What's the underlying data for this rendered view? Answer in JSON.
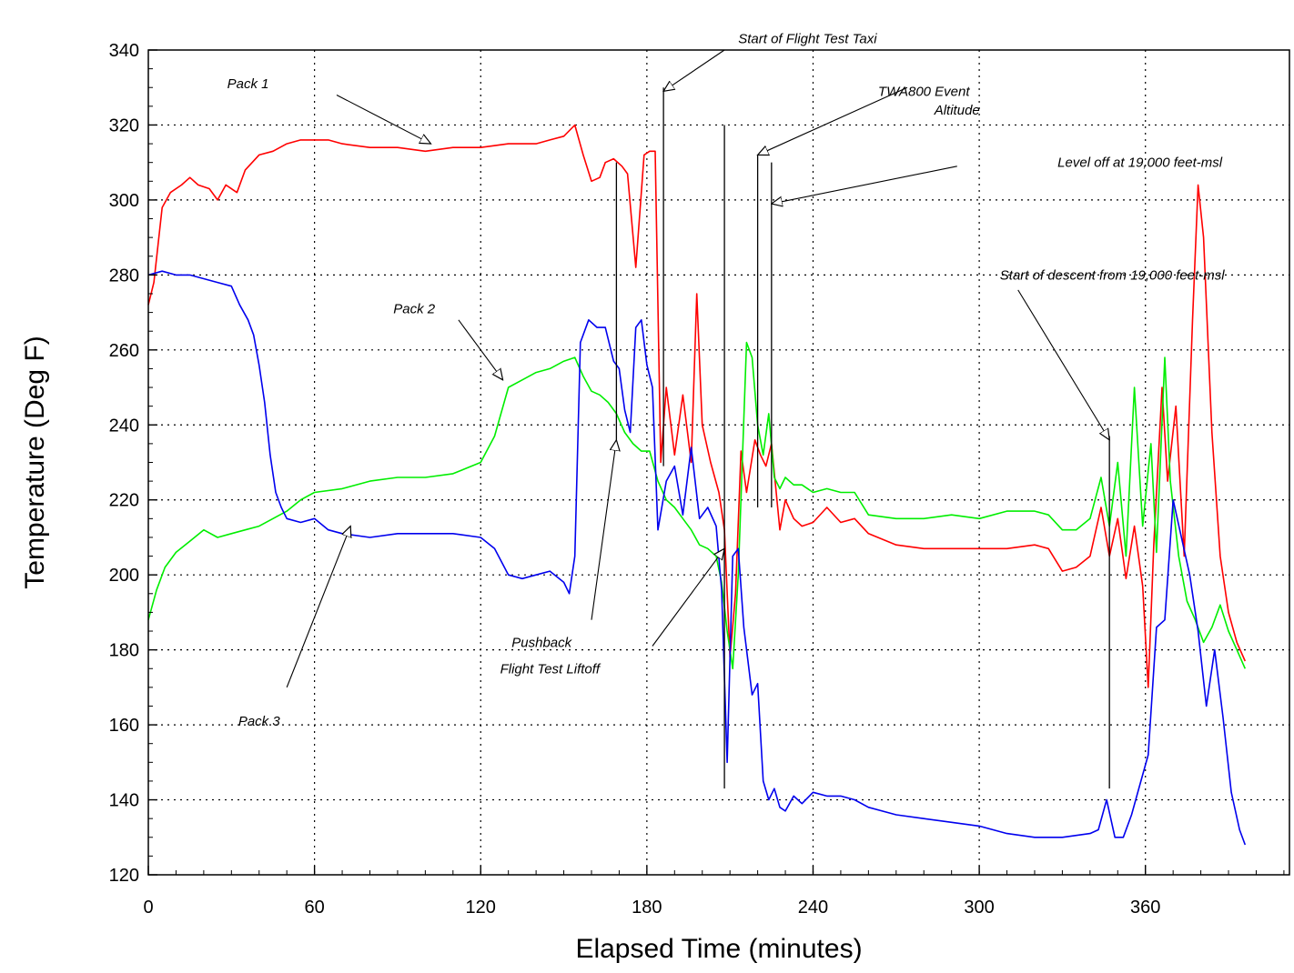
{
  "chart_data": {
    "type": "line",
    "title": "",
    "xlabel": "Elapsed Time (minutes)",
    "ylabel": "Temperature (Deg F)",
    "xlim": [
      0,
      412
    ],
    "ylim": [
      120,
      340
    ],
    "xticks": [
      0,
      60,
      120,
      180,
      240,
      300,
      360
    ],
    "yticks": [
      120,
      140,
      160,
      180,
      200,
      220,
      240,
      260,
      280,
      300,
      320,
      340
    ],
    "grid": true,
    "series": [
      {
        "color": "#ff0000",
        "x": [
          0,
          2,
          5,
          8,
          12,
          15,
          18,
          22,
          25,
          28,
          32,
          35,
          40,
          45,
          50,
          55,
          60,
          65,
          70,
          80,
          90,
          100,
          110,
          120,
          130,
          140,
          145,
          150,
          154,
          157,
          160,
          163,
          165,
          168,
          171,
          173,
          176,
          179,
          181,
          183,
          185,
          187,
          190,
          193,
          196,
          198,
          200,
          203,
          206,
          208,
          210,
          212,
          214,
          216,
          219,
          221,
          223,
          225,
          228,
          230,
          233,
          236,
          240,
          245,
          250,
          255,
          260,
          270,
          280,
          290,
          300,
          310,
          320,
          325,
          330,
          335,
          340,
          344,
          347,
          350,
          353,
          356,
          359,
          361,
          363,
          366,
          368,
          371,
          374,
          377,
          379,
          381,
          384,
          387,
          390,
          393,
          396
        ],
        "y": [
          272,
          278,
          298,
          302,
          304,
          306,
          304,
          303,
          300,
          304,
          302,
          308,
          312,
          313,
          315,
          316,
          316,
          316,
          315,
          314,
          314,
          313,
          314,
          314,
          315,
          315,
          316,
          317,
          320,
          312,
          305,
          306,
          310,
          311,
          309,
          307,
          282,
          312,
          313,
          313,
          230,
          250,
          232,
          248,
          230,
          275,
          240,
          230,
          222,
          212,
          178,
          195,
          233,
          222,
          236,
          232,
          229,
          235,
          212,
          220,
          215,
          213,
          214,
          218,
          214,
          215,
          211,
          208,
          207,
          207,
          207,
          207,
          208,
          207,
          201,
          202,
          205,
          218,
          205,
          215,
          199,
          213,
          197,
          170,
          208,
          250,
          225,
          245,
          205,
          268,
          304,
          290,
          238,
          205,
          190,
          182,
          177
        ]
      },
      {
        "color": "#00ee00",
        "x": [
          0,
          3,
          6,
          10,
          15,
          20,
          25,
          30,
          35,
          40,
          45,
          50,
          55,
          60,
          70,
          80,
          90,
          100,
          110,
          120,
          125,
          130,
          135,
          140,
          145,
          150,
          154,
          157,
          160,
          163,
          166,
          169,
          172,
          175,
          178,
          181,
          184,
          187,
          190,
          193,
          196,
          199,
          202,
          205,
          207,
          209,
          211,
          213,
          216,
          218,
          220,
          222,
          224,
          226,
          228,
          230,
          233,
          236,
          240,
          245,
          250,
          255,
          260,
          270,
          280,
          290,
          300,
          310,
          320,
          325,
          330,
          335,
          340,
          344,
          347,
          350,
          353,
          356,
          359,
          362,
          364,
          367,
          369,
          372,
          375,
          378,
          381,
          384,
          387,
          390,
          393,
          396
        ],
        "y": [
          188,
          196,
          202,
          206,
          209,
          212,
          210,
          211,
          212,
          213,
          215,
          217,
          220,
          222,
          223,
          225,
          226,
          226,
          227,
          230,
          237,
          250,
          252,
          254,
          255,
          257,
          258,
          253,
          249,
          248,
          246,
          243,
          238,
          235,
          233,
          233,
          225,
          220,
          218,
          215,
          212,
          208,
          207,
          205,
          198,
          185,
          175,
          200,
          262,
          258,
          240,
          232,
          243,
          226,
          223,
          226,
          224,
          224,
          222,
          223,
          222,
          222,
          216,
          215,
          215,
          216,
          215,
          217,
          217,
          216,
          212,
          212,
          215,
          226,
          213,
          230,
          205,
          250,
          213,
          235,
          206,
          258,
          225,
          205,
          193,
          188,
          182,
          186,
          192,
          185,
          180,
          175
        ]
      },
      {
        "color": "#0000ee",
        "x": [
          0,
          5,
          10,
          15,
          20,
          25,
          30,
          33,
          36,
          38,
          40,
          42,
          44,
          46,
          48,
          50,
          55,
          60,
          65,
          70,
          80,
          90,
          100,
          110,
          120,
          125,
          130,
          135,
          140,
          145,
          150,
          152,
          154,
          156,
          159,
          162,
          165,
          168,
          170,
          172,
          174,
          176,
          178,
          180,
          182,
          184,
          187,
          190,
          193,
          196,
          199,
          202,
          205,
          207,
          209,
          211,
          213,
          215,
          218,
          220,
          222,
          224,
          226,
          228,
          230,
          233,
          236,
          240,
          245,
          250,
          255,
          260,
          270,
          280,
          290,
          300,
          310,
          320,
          330,
          340,
          343,
          346,
          349,
          352,
          355,
          358,
          361,
          364,
          367,
          370,
          373,
          376,
          379,
          382,
          385,
          388,
          391,
          394,
          396
        ],
        "y": [
          280,
          281,
          280,
          280,
          279,
          278,
          277,
          272,
          268,
          264,
          256,
          246,
          232,
          222,
          218,
          215,
          214,
          215,
          212,
          211,
          210,
          211,
          211,
          211,
          210,
          207,
          200,
          199,
          200,
          201,
          198,
          195,
          205,
          262,
          268,
          266,
          266,
          257,
          255,
          244,
          238,
          266,
          268,
          256,
          250,
          212,
          225,
          229,
          216,
          234,
          215,
          218,
          213,
          196,
          150,
          205,
          207,
          186,
          168,
          171,
          145,
          140,
          143,
          138,
          137,
          141,
          139,
          142,
          141,
          141,
          140,
          138,
          136,
          135,
          134,
          133,
          131,
          130,
          130,
          131,
          132,
          140,
          130,
          130,
          136,
          144,
          152,
          186,
          188,
          220,
          210,
          200,
          185,
          165,
          180,
          162,
          142,
          132,
          128
        ]
      }
    ],
    "annotations": [
      {
        "label": "Pack 1",
        "text_x": 36,
        "text_y": 331,
        "arrow_from": [
          68,
          328
        ],
        "arrow_to": [
          102,
          315
        ]
      },
      {
        "label": "Pack 2",
        "text_x": 96,
        "text_y": 271,
        "arrow_from": [
          112,
          268
        ],
        "arrow_to": [
          128,
          252
        ]
      },
      {
        "label": "Pack 3",
        "text_x": 40,
        "text_y": 161,
        "arrow_from": [
          50,
          170
        ],
        "arrow_to": [
          73,
          213
        ]
      },
      {
        "label": "Start of Flight Test Taxi",
        "text_x": 238,
        "text_y": 343,
        "arrow_from": [
          208,
          340
        ],
        "arrow_to": [
          186,
          329
        ],
        "vline_x": 186,
        "vline_y": [
          229,
          330
        ]
      },
      {
        "label": "Pushback",
        "text_x": 142,
        "text_y": 182,
        "arrow_from": [
          160,
          188
        ],
        "arrow_to": [
          169,
          236
        ],
        "vline_x": 169,
        "vline_y": [
          236,
          310
        ]
      },
      {
        "label": "Flight Test Liftoff",
        "text_x": 145,
        "text_y": 175,
        "arrow_from": [
          182,
          181
        ],
        "arrow_to": [
          208,
          207
        ],
        "vline_x": 208,
        "vline_y": [
          143,
          320
        ]
      },
      {
        "label": "TWA800 Event",
        "text_x": 280,
        "text_y": 329,
        "arrow_from": [
          274,
          330
        ],
        "arrow_to": [
          220,
          312
        ],
        "vline_x": 220,
        "vline_y": [
          218,
          312
        ]
      },
      {
        "label": "Altitude",
        "text_x": 292,
        "text_y": 324,
        "arrow_from": null,
        "arrow_to": null
      },
      {
        "label": "Level off at 19,000 feet-msl",
        "text_x": 358,
        "text_y": 310,
        "arrow_from": [
          292,
          309
        ],
        "arrow_to": [
          225,
          299
        ],
        "vline_x": 225,
        "vline_y": [
          218,
          310
        ]
      },
      {
        "label": "Start of descent from 19,000 feet-msl",
        "text_x": 348,
        "text_y": 280,
        "arrow_from": [
          314,
          276
        ],
        "arrow_to": [
          347,
          236
        ],
        "vline_x": 347,
        "vline_y": [
          143,
          237
        ]
      }
    ]
  }
}
